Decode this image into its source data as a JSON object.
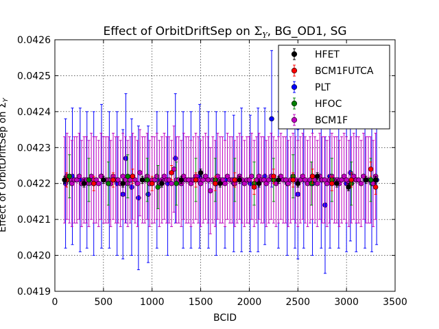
{
  "chart_data": {
    "type": "scatter",
    "title_prefix": "Effect of OrbitDriftSep on ",
    "title_symbol": "Σ",
    "title_subscript": "Y",
    "title_suffix": ", BG_OD1, SG",
    "xlabel": "BCID",
    "ylabel": "Effect of OrbitDriftSep on Σ",
    "ylabel_subscript": "Y",
    "xlim": [
      0,
      3500
    ],
    "ylim": [
      0.0419,
      0.0426
    ],
    "xticks": [
      0,
      500,
      1000,
      1500,
      2000,
      2500,
      3000,
      3500
    ],
    "xtick_labels": [
      "0",
      "500",
      "1000",
      "1500",
      "2000",
      "2500",
      "3000",
      "3500"
    ],
    "yticks": [
      0.0419,
      0.042,
      0.0421,
      0.0422,
      0.0423,
      0.0424,
      0.0425,
      0.0426
    ],
    "ytick_labels": [
      "0.0419",
      "0.0420",
      "0.0421",
      "0.0422",
      "0.0423",
      "0.0424",
      "0.0425",
      "0.0426"
    ],
    "grid": true,
    "legend_position": "top-right",
    "series": [
      {
        "name": "HFET",
        "color": "#000000",
        "x": [
          100,
          300,
          500,
          700,
          900,
          1100,
          1300,
          1500,
          1700,
          1900,
          2100,
          2300,
          2500,
          2700,
          2900,
          3020,
          3200,
          3300
        ],
        "y": [
          0.04221,
          0.0422,
          0.04221,
          0.0422,
          0.04221,
          0.0422,
          0.04221,
          0.04223,
          0.0422,
          0.04221,
          0.0422,
          0.04221,
          0.0422,
          0.04222,
          0.0422,
          0.04219,
          0.04221,
          0.04221
        ],
        "err": [
          1e-05,
          1e-05,
          1e-05,
          1e-05,
          1e-05,
          1e-05,
          1e-05,
          1e-05,
          1e-05,
          1e-05,
          1e-05,
          1e-05,
          1e-05,
          1e-05,
          1e-05,
          1e-05,
          1e-05,
          1e-05
        ]
      },
      {
        "name": "BCM1FUTCA",
        "color": "#ff0000",
        "x": [
          120,
          400,
          600,
          800,
          1000,
          1200,
          1450,
          1650,
          1850,
          2050,
          2250,
          2450,
          2650,
          2850,
          3050,
          3250,
          3300
        ],
        "y": [
          0.04221,
          0.0422,
          0.04221,
          0.04222,
          0.0422,
          0.04223,
          0.04221,
          0.0422,
          0.04221,
          0.04219,
          0.04222,
          0.04221,
          0.04222,
          0.0422,
          0.04221,
          0.04224,
          0.04219
        ],
        "err": [
          2e-05,
          2e-05,
          2e-05,
          2e-05,
          2e-05,
          2e-05,
          2e-05,
          2e-05,
          2e-05,
          2e-05,
          2e-05,
          2e-05,
          2e-05,
          2e-05,
          2e-05,
          2e-05,
          2e-05
        ]
      },
      {
        "name": "PLT",
        "color": "#0000ff",
        "x": [
          110,
          180,
          260,
          330,
          400,
          480,
          560,
          640,
          700,
          730,
          790,
          860,
          960,
          1050,
          1160,
          1240,
          1320,
          1400,
          1490,
          1580,
          1660,
          1750,
          1840,
          1920,
          2010,
          2090,
          2160,
          2230,
          2300,
          2390,
          2470,
          2500,
          2560,
          2650,
          2740,
          2780,
          2830,
          2920,
          3000,
          3040,
          3100,
          3190,
          3260,
          3310
        ],
        "y": [
          0.0422,
          0.04222,
          0.04221,
          0.04221,
          0.0422,
          0.04222,
          0.04221,
          0.0422,
          0.04217,
          0.04227,
          0.04219,
          0.04216,
          0.04217,
          0.04221,
          0.0422,
          0.04227,
          0.04221,
          0.04221,
          0.04222,
          0.04221,
          0.0422,
          0.04221,
          0.0422,
          0.04221,
          0.0422,
          0.04221,
          0.04222,
          0.04238,
          0.04221,
          0.0422,
          0.04221,
          0.04217,
          0.04221,
          0.0422,
          0.04221,
          0.04214,
          0.04222,
          0.04221,
          0.0422,
          0.04223,
          0.04221,
          0.04221,
          0.0422,
          0.04221
        ],
        "err": [
          0.00018,
          0.00019,
          0.0002,
          0.00019,
          0.0002,
          0.0002,
          0.00019,
          0.0002,
          0.00018,
          0.00018,
          0.00019,
          0.0002,
          0.00019,
          0.00019,
          0.0002,
          0.00018,
          0.00019,
          0.00019,
          0.0002,
          0.00019,
          0.0002,
          0.00019,
          0.00019,
          0.0002,
          0.00019,
          0.0002,
          0.00019,
          0.00019,
          0.00019,
          0.0002,
          0.00019,
          0.00018,
          0.00019,
          0.0002,
          0.00019,
          0.00019,
          0.0002,
          0.00019,
          0.00019,
          0.00019,
          0.0002,
          0.00019,
          0.00019,
          0.00018
        ]
      },
      {
        "name": "HFOC",
        "color": "#008000",
        "x": [
          150,
          350,
          550,
          750,
          950,
          1060,
          1250,
          1450,
          1650,
          1850,
          2050,
          2250,
          2450,
          2640,
          2850,
          3050,
          3250
        ],
        "y": [
          0.04222,
          0.04221,
          0.0422,
          0.04222,
          0.04221,
          0.04219,
          0.0422,
          0.04221,
          0.04221,
          0.04221,
          0.0422,
          0.04221,
          0.04222,
          0.0422,
          0.04221,
          0.0422,
          0.04221
        ],
        "err": [
          6e-05,
          6e-05,
          6e-05,
          6e-05,
          6e-05,
          6e-05,
          6e-05,
          6e-05,
          6e-05,
          6e-05,
          6e-05,
          6e-05,
          6e-05,
          6e-05,
          6e-05,
          6e-05,
          6e-05
        ]
      },
      {
        "name": "BCM1F",
        "color": "#bf00bf",
        "x": [
          100,
          125,
          150,
          175,
          200,
          225,
          250,
          275,
          300,
          325,
          350,
          375,
          400,
          425,
          450,
          475,
          500,
          525,
          550,
          575,
          600,
          625,
          650,
          675,
          700,
          725,
          750,
          775,
          800,
          825,
          850,
          875,
          900,
          925,
          950,
          975,
          1000,
          1025,
          1050,
          1075,
          1100,
          1125,
          1150,
          1175,
          1200,
          1225,
          1250,
          1275,
          1300,
          1325,
          1350,
          1375,
          1400,
          1425,
          1450,
          1475,
          1500,
          1525,
          1550,
          1575,
          1600,
          1625,
          1650,
          1675,
          1700,
          1725,
          1750,
          1775,
          1800,
          1825,
          1850,
          1875,
          1900,
          1925,
          1950,
          1975,
          2000,
          2025,
          2050,
          2075,
          2100,
          2125,
          2150,
          2175,
          2200,
          2225,
          2250,
          2275,
          2300,
          2325,
          2350,
          2375,
          2400,
          2425,
          2450,
          2475,
          2500,
          2525,
          2550,
          2575,
          2600,
          2625,
          2650,
          2675,
          2700,
          2725,
          2750,
          2775,
          2800,
          2825,
          2850,
          2875,
          2900,
          2925,
          2950,
          2975,
          3000,
          3025,
          3050,
          3075,
          3100,
          3125,
          3150,
          3175,
          3200,
          3225,
          3250,
          3275,
          3300
        ],
        "y": [
          0.04221,
          0.04222,
          0.04221,
          0.0422,
          0.04221,
          0.04221,
          0.04222,
          0.0422,
          0.04221,
          0.04221,
          0.0422,
          0.04222,
          0.04221,
          0.04221,
          0.0422,
          0.04222,
          0.04221,
          0.04221,
          0.04221,
          0.0422,
          0.04222,
          0.04221,
          0.04221,
          0.0422,
          0.04222,
          0.04221,
          0.0422,
          0.04221,
          0.04222,
          0.04221,
          0.0422,
          0.04223,
          0.04221,
          0.04221,
          0.04222,
          0.0422,
          0.04221,
          0.04221,
          0.04222,
          0.0422,
          0.04221,
          0.04222,
          0.04221,
          0.04221,
          0.0422,
          0.04224,
          0.04221,
          0.04221,
          0.0422,
          0.04222,
          0.04221,
          0.04221,
          0.0422,
          0.04221,
          0.04222,
          0.04221,
          0.0422,
          0.04221,
          0.04222,
          0.04221,
          0.04218,
          0.04221,
          0.0422,
          0.04222,
          0.04221,
          0.04221,
          0.0422,
          0.04222,
          0.04221,
          0.04221,
          0.0422,
          0.04221,
          0.04222,
          0.04221,
          0.0422,
          0.04221,
          0.04221,
          0.04222,
          0.0422,
          0.04221,
          0.04222,
          0.04221,
          0.04221,
          0.0422,
          0.04221,
          0.04222,
          0.04221,
          0.0422,
          0.04221,
          0.04222,
          0.04221,
          0.04221,
          0.0422,
          0.04221,
          0.04222,
          0.04221,
          0.0422,
          0.04221,
          0.04222,
          0.04221,
          0.0422,
          0.04221,
          0.04222,
          0.04221,
          0.0422,
          0.04222,
          0.04221,
          0.04221,
          0.0422,
          0.04221,
          0.04222,
          0.04221,
          0.04221,
          0.0422,
          0.04221,
          0.04222,
          0.04221,
          0.0422,
          0.04221,
          0.04222,
          0.04221,
          0.04221,
          0.0422,
          0.04222,
          0.04221,
          0.04221,
          0.04221,
          0.0422,
          0.04222
        ],
        "err": [
          0.00012,
          0.00012,
          0.00012,
          0.00012,
          0.00012,
          0.00012,
          0.00012,
          0.00012,
          0.00012,
          0.00012,
          0.00012,
          0.00012,
          0.00012,
          0.00012,
          0.00012,
          0.00012,
          0.00012,
          0.00012,
          0.00012,
          0.00012,
          0.00012,
          0.00012,
          0.00012,
          0.00012,
          0.00012,
          0.00012,
          0.00012,
          0.00012,
          0.00012,
          0.00012,
          0.00012,
          0.00012,
          0.00012,
          0.00012,
          0.00012,
          0.00012,
          0.00012,
          0.00012,
          0.00012,
          0.00012,
          0.00012,
          0.00012,
          0.00012,
          0.00012,
          0.00012,
          0.00012,
          0.00012,
          0.00012,
          0.00012,
          0.00012,
          0.00012,
          0.00012,
          0.00012,
          0.00012,
          0.00012,
          0.00012,
          0.00012,
          0.00012,
          0.00012,
          0.00012,
          0.00012,
          0.00012,
          0.00012,
          0.00012,
          0.00012,
          0.00012,
          0.00012,
          0.00012,
          0.00012,
          0.00012,
          0.00012,
          0.00012,
          0.00012,
          0.00012,
          0.00012,
          0.00012,
          0.00012,
          0.00012,
          0.00012,
          0.00012,
          0.00012,
          0.00012,
          0.00012,
          0.00012,
          0.00012,
          0.00012,
          0.00012,
          0.00012,
          0.00012,
          0.00012,
          0.00012,
          0.00012,
          0.00012,
          0.00012,
          0.00012,
          0.00012,
          0.00012,
          0.00012,
          0.00012,
          0.00012,
          0.00012,
          0.00012,
          0.00012,
          0.00012,
          0.00012,
          0.00012,
          0.00012,
          0.00012,
          0.00012,
          0.00012,
          0.00012,
          0.00012,
          0.00012,
          0.00012,
          0.00012,
          0.00012,
          0.00012,
          0.00012,
          0.00012,
          0.00012,
          0.00012,
          0.00012,
          0.00012,
          0.00012,
          0.00012,
          0.00012,
          0.00012,
          0.00012,
          0.00012
        ]
      }
    ]
  }
}
